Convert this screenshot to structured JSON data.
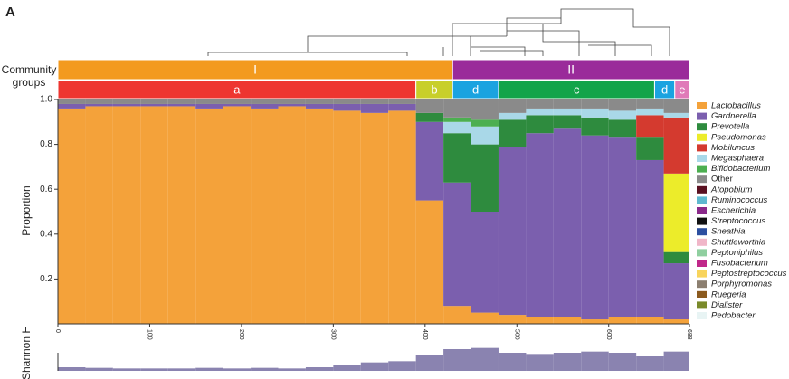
{
  "panel_label": "A",
  "group_axis_label": "Community groups",
  "chart_data": [
    {
      "type": "stacked-bar",
      "y_label": "Proportion",
      "x": [
        0,
        30,
        60,
        90,
        120,
        150,
        180,
        210,
        240,
        270,
        300,
        330,
        360,
        390,
        420,
        450,
        480,
        510,
        540,
        570,
        600,
        630,
        660
      ],
      "xlim": [
        0,
        688
      ],
      "xticks": [
        0,
        100,
        200,
        300,
        400,
        500,
        600,
        688
      ],
      "ylim": [
        0,
        1
      ],
      "yticks": [
        0.2,
        0.4,
        0.6,
        0.8,
        {
          "value": 1,
          "label": "1.0"
        }
      ],
      "groups": [
        {
          "label": "I",
          "start": 0,
          "end": 430,
          "color": "#f39a1e"
        },
        {
          "label": "II",
          "start": 430,
          "end": 688,
          "color": "#9a2b9a"
        }
      ],
      "subgroups": [
        {
          "label": "a",
          "start": 0,
          "end": 390,
          "color": "#ee3530"
        },
        {
          "label": "b",
          "start": 390,
          "end": 430,
          "color": "#c8cf2a"
        },
        {
          "label": "d",
          "start": 430,
          "end": 480,
          "color": "#1aa3e0"
        },
        {
          "label": "c",
          "start": 480,
          "end": 650,
          "color": "#12a44a"
        },
        {
          "label": "d",
          "start": 650,
          "end": 672,
          "color": "#1aa3e0"
        },
        {
          "label": "e",
          "start": 672,
          "end": 688,
          "color": "#e07ab8"
        }
      ],
      "series": [
        {
          "name": "Lactobacillus",
          "color": "#f4a23a",
          "values": [
            0.96,
            0.97,
            0.97,
            0.97,
            0.97,
            0.96,
            0.97,
            0.96,
            0.97,
            0.96,
            0.95,
            0.94,
            0.95,
            0.55,
            0.08,
            0.05,
            0.04,
            0.03,
            0.03,
            0.02,
            0.03,
            0.03,
            0.02
          ]
        },
        {
          "name": "Gardnerella",
          "color": "#7b5fae",
          "values": [
            0.02,
            0.01,
            0.01,
            0.01,
            0.01,
            0.02,
            0.01,
            0.02,
            0.01,
            0.02,
            0.03,
            0.04,
            0.03,
            0.35,
            0.55,
            0.45,
            0.75,
            0.82,
            0.84,
            0.82,
            0.8,
            0.7,
            0.25
          ]
        },
        {
          "name": "Prevotella",
          "color": "#2e8b3e",
          "values": [
            0,
            0,
            0,
            0,
            0,
            0,
            0,
            0,
            0,
            0,
            0,
            0,
            0,
            0.04,
            0.22,
            0.3,
            0.12,
            0.08,
            0.06,
            0.08,
            0.08,
            0.1,
            0.05
          ]
        },
        {
          "name": "Pseudomonas",
          "color": "#ecec2a",
          "values": [
            0,
            0,
            0,
            0,
            0,
            0,
            0,
            0,
            0,
            0,
            0,
            0,
            0,
            0,
            0,
            0,
            0,
            0,
            0,
            0,
            0,
            0,
            0.35
          ]
        },
        {
          "name": "Mobiluncus",
          "color": "#d43a2f",
          "values": [
            0,
            0,
            0,
            0,
            0,
            0,
            0,
            0,
            0,
            0,
            0,
            0,
            0,
            0,
            0,
            0,
            0,
            0,
            0,
            0,
            0,
            0.1,
            0.25
          ]
        },
        {
          "name": "Megasphaera",
          "color": "#a9d8e8",
          "values": [
            0,
            0,
            0,
            0,
            0,
            0,
            0,
            0,
            0,
            0,
            0,
            0,
            0,
            0,
            0.05,
            0.08,
            0.03,
            0.03,
            0.03,
            0.04,
            0.04,
            0.03,
            0.02
          ]
        },
        {
          "name": "Bifidobacterium",
          "color": "#4caf50",
          "values": [
            0,
            0,
            0,
            0,
            0,
            0,
            0,
            0,
            0,
            0,
            0,
            0,
            0,
            0,
            0.02,
            0.03,
            0,
            0,
            0,
            0,
            0,
            0,
            0
          ]
        },
        {
          "name": "Other",
          "color": "#8a8a8a",
          "values": [
            0.02,
            0.02,
            0.02,
            0.02,
            0.02,
            0.02,
            0.02,
            0.02,
            0.02,
            0.02,
            0.02,
            0.02,
            0.02,
            0.06,
            0.08,
            0.09,
            0.06,
            0.04,
            0.04,
            0.04,
            0.05,
            0.04,
            0.06
          ]
        }
      ],
      "additional_taxa": [
        {
          "name": "Atopobium",
          "color": "#5a1020"
        },
        {
          "name": "Ruminococcus",
          "color": "#5fb9d0"
        },
        {
          "name": "Escherichia",
          "color": "#8b2a8b"
        },
        {
          "name": "Streptococcus",
          "color": "#111111"
        },
        {
          "name": "Sneathia",
          "color": "#2c4fa0"
        },
        {
          "name": "Shuttleworthia",
          "color": "#f0b6c8"
        },
        {
          "name": "Peptoniphilus",
          "color": "#8fcf9f"
        },
        {
          "name": "Fusobacterium",
          "color": "#c0288a"
        },
        {
          "name": "Peptostreptococcus",
          "color": "#f8d45c"
        },
        {
          "name": "Porphyromonas",
          "color": "#8c7f70"
        },
        {
          "name": "Ruegeria",
          "color": "#8b5a1e"
        },
        {
          "name": "Dialister",
          "color": "#7a8a2a"
        },
        {
          "name": "Pedobacter",
          "color": "#e8f4f4"
        }
      ]
    },
    {
      "type": "bar",
      "y_label": "Shannon H",
      "color": "#8a83b0",
      "x": [
        0,
        30,
        60,
        90,
        120,
        150,
        180,
        210,
        240,
        270,
        300,
        330,
        360,
        390,
        420,
        450,
        480,
        510,
        540,
        570,
        600,
        630,
        660
      ],
      "xlim": [
        0,
        688
      ],
      "ylim": [
        0,
        3
      ],
      "values": [
        0.3,
        0.25,
        0.2,
        0.2,
        0.2,
        0.25,
        0.2,
        0.25,
        0.2,
        0.3,
        0.5,
        0.7,
        0.8,
        1.3,
        1.8,
        1.9,
        1.5,
        1.4,
        1.5,
        1.6,
        1.5,
        1.2,
        1.6
      ]
    }
  ]
}
